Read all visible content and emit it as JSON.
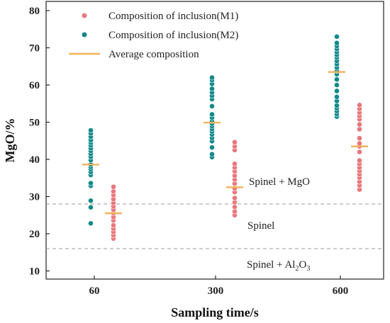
{
  "chart_data": {
    "type": "scatter",
    "xlabel": "Sampling time/s",
    "ylabel": "MgO/%",
    "categories": [
      "60",
      "300",
      "600"
    ],
    "ylim": [
      5,
      82
    ],
    "yticks": [
      10,
      20,
      30,
      40,
      50,
      60,
      70,
      80
    ],
    "grid": false,
    "legend_position": "top-left",
    "legend": [
      {
        "label": "Composition of inclusion(M1)",
        "color": "#e8777c",
        "marker": "dot"
      },
      {
        "label": "Composition of inclusion(M2)",
        "color": "#12898a",
        "marker": "dot"
      },
      {
        "label": "Average composition",
        "color": "#f2b25c",
        "marker": "line"
      }
    ],
    "series": [
      {
        "name": "Composition of inclusion(M2)",
        "color": "#12898a",
        "values": [
          [
            22.8,
            27.1,
            28.9,
            32.9,
            33.6,
            35.8,
            36.6,
            37.4,
            38.0,
            38.6,
            39.8,
            40.7,
            41.5,
            42.3,
            43.0,
            43.8,
            44.5,
            45.2,
            46.1,
            47.0,
            47.8
          ],
          [
            40.6,
            41.4,
            43.2,
            44.9,
            45.8,
            46.7,
            47.5,
            48.2,
            48.9,
            49.6,
            50.3,
            51.2,
            52.1,
            54.3,
            56.2,
            57.1,
            58.0,
            59.0,
            60.3,
            61.3,
            62.0
          ],
          [
            51.5,
            52.2,
            53.0,
            53.8,
            54.5,
            55.7,
            56.8,
            58.4,
            60.0,
            61.5,
            62.9,
            63.8,
            64.7,
            65.6,
            66.5,
            67.4,
            68.1,
            68.9,
            69.7,
            70.5,
            71.3,
            73.0
          ]
        ]
      },
      {
        "name": "Composition of inclusion(M1)",
        "color": "#e8777c",
        "values": [
          [
            18.7,
            19.6,
            20.5,
            21.4,
            22.3,
            23.6,
            24.5,
            25.5,
            26.5,
            27.4,
            28.3,
            29.3,
            30.4,
            31.4,
            32.6
          ],
          [
            25.0,
            26.0,
            27.2,
            28.5,
            29.6,
            31.2,
            32.2,
            33.5,
            34.6,
            35.6,
            36.8,
            37.8,
            38.8,
            42.5,
            43.5,
            44.6
          ],
          [
            31.9,
            33.0,
            34.0,
            35.1,
            36.0,
            36.9,
            37.8,
            38.8,
            39.7,
            42.0,
            43.5,
            44.3,
            45.7,
            48.1,
            49.4,
            50.8,
            51.7,
            52.6,
            53.6,
            54.6
          ]
        ]
      }
    ],
    "averages": [
      {
        "name": "M2",
        "values": [
          38.6,
          49.9,
          63.5
        ]
      },
      {
        "name": "M1",
        "values": [
          25.5,
          32.5,
          43.5
        ]
      }
    ],
    "reference_lines": [
      {
        "y": 28,
        "style": "dashed"
      },
      {
        "y": 16,
        "style": "dashed"
      }
    ],
    "annotations": {
      "spinel_mgo": "Spinel + MgO",
      "spinel": "Spinel",
      "spinel_al2o3_prefix": "Spinel + Al",
      "spinel_al2o3_sub1": "2",
      "spinel_al2o3_mid": "O",
      "spinel_al2o3_sub2": "3"
    }
  }
}
